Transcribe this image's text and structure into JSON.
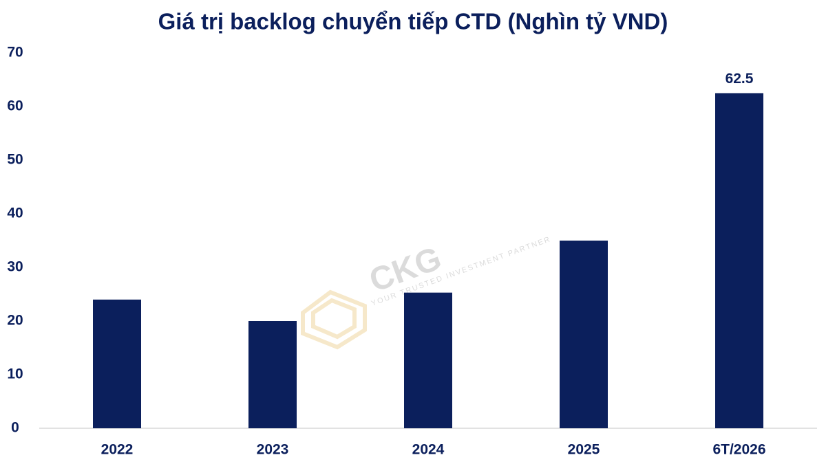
{
  "chart_data": {
    "type": "bar",
    "title": "Giá trị backlog chuyển tiếp CTD (Nghìn tỷ VND)",
    "categories": [
      "2022",
      "2023",
      "2024",
      "2025",
      "6T/2026"
    ],
    "values": [
      24,
      20,
      25.3,
      35,
      62.5
    ],
    "value_labels": [
      null,
      null,
      null,
      null,
      "62.5"
    ],
    "color": "#0b1f5c",
    "ylim": [
      0,
      70
    ],
    "yticks": [
      0,
      10,
      20,
      30,
      40,
      50,
      60,
      70
    ],
    "grid": false,
    "watermark": {
      "brand": "CKG",
      "tagline": "YOUR TRUSTED INVESTMENT PARTNER"
    }
  }
}
